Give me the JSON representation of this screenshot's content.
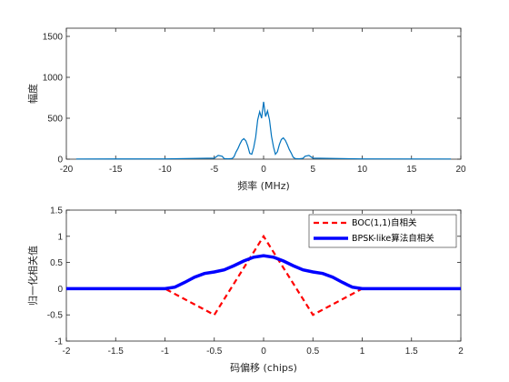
{
  "chart_data": [
    {
      "type": "line",
      "xlabel": "频率 (MHz)",
      "ylabel": "幅度",
      "xlim": [
        -20,
        20
      ],
      "ylim": [
        0,
        1600
      ],
      "xticks": [
        "-20",
        "-15",
        "-10",
        "-5",
        "0",
        "5",
        "10",
        "15",
        "20"
      ],
      "yticks": [
        "0",
        "500",
        "1000",
        "1500"
      ],
      "grid": false,
      "series": [
        {
          "color": "#0072BD",
          "x": [
            -19.0,
            -10.0,
            -5.0,
            -4.6,
            -4.2,
            -4.0,
            -3.6,
            -3.2,
            -3.0,
            -2.8,
            -2.6,
            -2.4,
            -2.2,
            -2.0,
            -1.8,
            -1.6,
            -1.4,
            -1.2,
            -1.0,
            -0.8,
            -0.6,
            -0.4,
            -0.2,
            0.0,
            0.2,
            0.4,
            0.6,
            0.8,
            1.0,
            1.2,
            1.4,
            1.6,
            1.8,
            2.0,
            2.2,
            2.4,
            2.6,
            2.8,
            3.0,
            3.2,
            3.6,
            4.0,
            4.2,
            4.6,
            5.0,
            10.0,
            19.0
          ],
          "y": [
            2,
            3,
            12,
            45,
            35,
            8,
            5,
            8,
            28,
            85,
            130,
            185,
            230,
            250,
            225,
            160,
            70,
            60,
            140,
            270,
            480,
            580,
            500,
            700,
            520,
            590,
            480,
            280,
            150,
            60,
            90,
            180,
            240,
            260,
            230,
            180,
            120,
            75,
            25,
            8,
            5,
            10,
            35,
            45,
            12,
            3,
            2
          ]
        }
      ]
    },
    {
      "type": "line",
      "xlabel": "码偏移 (chips)",
      "ylabel": "归一化相关值",
      "xlim": [
        -2,
        2
      ],
      "ylim": [
        -1,
        1.5
      ],
      "xticks": [
        "-2",
        "-1.5",
        "-1",
        "-0.5",
        "0",
        "0.5",
        "1",
        "1.5",
        "2"
      ],
      "yticks": [
        "-1",
        "-0.5",
        "0",
        "0.5",
        "1",
        "1.5"
      ],
      "grid": false,
      "legend": "top-right",
      "series": [
        {
          "name": "BOC(1,1)自相关",
          "color": "#FF0000",
          "style": "dashed",
          "x": [
            -2,
            -1,
            -0.5,
            0,
            0.5,
            1,
            2
          ],
          "y": [
            0,
            0,
            -0.5,
            1,
            -0.5,
            0,
            0
          ]
        },
        {
          "name": "BPSK-like算法自相关",
          "color": "#0000FF",
          "style": "solid",
          "x": [
            -2,
            -1.2,
            -1.0,
            -0.9,
            -0.8,
            -0.7,
            -0.6,
            -0.5,
            -0.4,
            -0.3,
            -0.2,
            -0.1,
            0,
            0.1,
            0.2,
            0.3,
            0.4,
            0.5,
            0.6,
            0.7,
            0.8,
            0.9,
            1.0,
            1.2,
            2
          ],
          "y": [
            0,
            0,
            0,
            0.03,
            0.12,
            0.22,
            0.29,
            0.32,
            0.36,
            0.44,
            0.53,
            0.6,
            0.63,
            0.6,
            0.53,
            0.44,
            0.36,
            0.32,
            0.29,
            0.22,
            0.12,
            0.03,
            0,
            0,
            0
          ]
        }
      ]
    }
  ]
}
